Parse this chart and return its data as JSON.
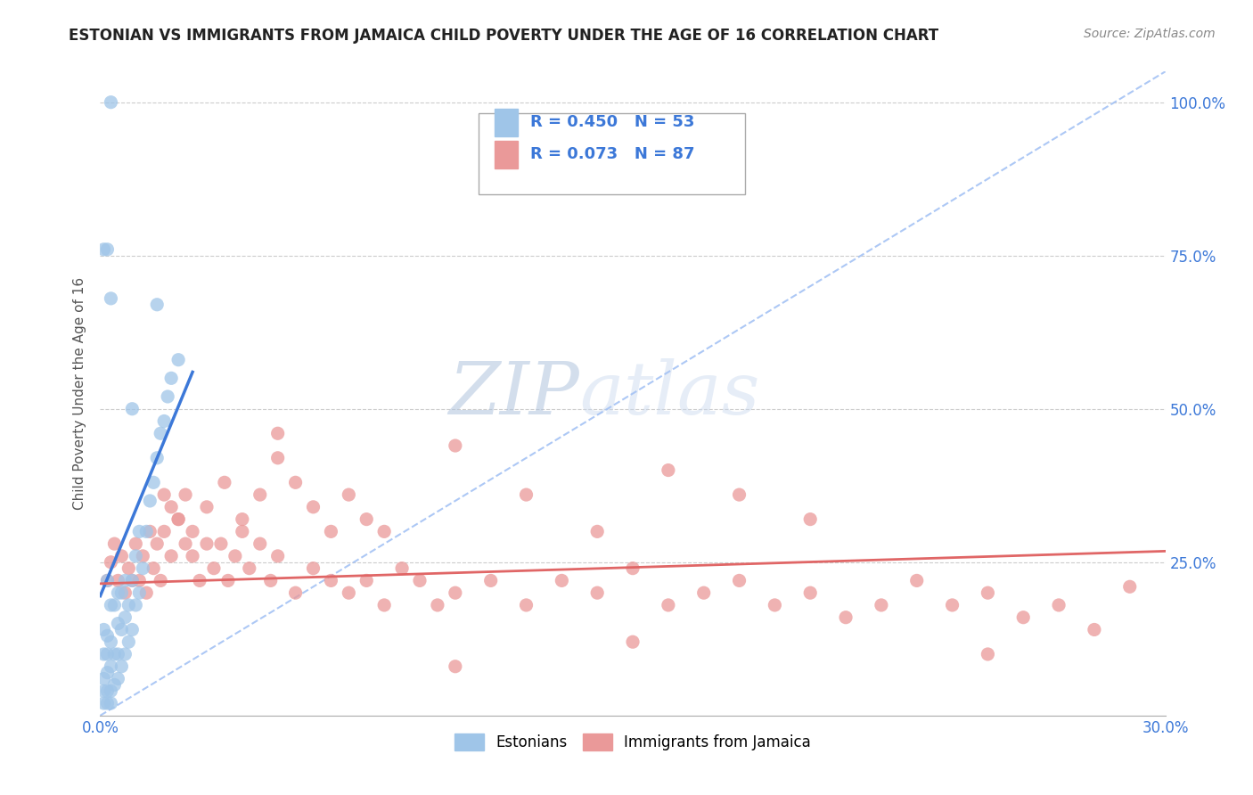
{
  "title": "ESTONIAN VS IMMIGRANTS FROM JAMAICA CHILD POVERTY UNDER THE AGE OF 16 CORRELATION CHART",
  "source": "Source: ZipAtlas.com",
  "ylabel": "Child Poverty Under the Age of 16",
  "xmin": 0.0,
  "xmax": 0.3,
  "ymin": 0.0,
  "ymax": 1.05,
  "yticks": [
    0.0,
    0.25,
    0.5,
    0.75,
    1.0
  ],
  "ytick_labels": [
    "",
    "25.0%",
    "50.0%",
    "75.0%",
    "100.0%"
  ],
  "xtick_left_label": "0.0%",
  "xtick_right_label": "30.0%",
  "legend_r1": "R = 0.450",
  "legend_n1": "N = 53",
  "legend_r2": "R = 0.073",
  "legend_n2": "N = 87",
  "color_estonian": "#9fc5e8",
  "color_jamaica": "#ea9999",
  "color_estonian_line": "#3c78d8",
  "color_jamaica_line": "#e06666",
  "color_diagonal": "#a4c2f4",
  "color_grid": "#cccccc",
  "color_tick_label": "#3c78d8",
  "watermark_zip": "ZIP",
  "watermark_atlas": "atlas",
  "watermark_color_zip": "#c9d9ef",
  "watermark_color_atlas": "#c9d9ef",
  "est_line_x0": 0.0,
  "est_line_y0": 0.195,
  "est_line_x1": 0.026,
  "est_line_y1": 0.56,
  "jam_line_x0": 0.0,
  "jam_line_y0": 0.215,
  "jam_line_x1": 0.3,
  "jam_line_y1": 0.268,
  "estonian_x": [
    0.001,
    0.001,
    0.001,
    0.001,
    0.001,
    0.002,
    0.002,
    0.002,
    0.002,
    0.002,
    0.002,
    0.003,
    0.003,
    0.003,
    0.003,
    0.003,
    0.004,
    0.004,
    0.004,
    0.005,
    0.005,
    0.005,
    0.005,
    0.006,
    0.006,
    0.006,
    0.007,
    0.007,
    0.007,
    0.008,
    0.008,
    0.009,
    0.009,
    0.01,
    0.01,
    0.011,
    0.011,
    0.012,
    0.013,
    0.014,
    0.015,
    0.016,
    0.017,
    0.018,
    0.019,
    0.02,
    0.022,
    0.001,
    0.002,
    0.003,
    0.003,
    0.009,
    0.016
  ],
  "estonian_y": [
    0.02,
    0.04,
    0.06,
    0.1,
    0.14,
    0.02,
    0.04,
    0.07,
    0.1,
    0.13,
    0.22,
    0.02,
    0.04,
    0.08,
    0.12,
    0.18,
    0.05,
    0.1,
    0.18,
    0.06,
    0.1,
    0.15,
    0.2,
    0.08,
    0.14,
    0.2,
    0.1,
    0.16,
    0.22,
    0.12,
    0.18,
    0.14,
    0.22,
    0.18,
    0.26,
    0.2,
    0.3,
    0.24,
    0.3,
    0.35,
    0.38,
    0.42,
    0.46,
    0.48,
    0.52,
    0.55,
    0.58,
    0.76,
    0.76,
    0.68,
    1.0,
    0.5,
    0.67
  ],
  "jamaica_x": [
    0.002,
    0.003,
    0.004,
    0.005,
    0.006,
    0.007,
    0.008,
    0.009,
    0.01,
    0.011,
    0.012,
    0.013,
    0.014,
    0.015,
    0.016,
    0.017,
    0.018,
    0.02,
    0.022,
    0.024,
    0.026,
    0.028,
    0.03,
    0.032,
    0.034,
    0.036,
    0.038,
    0.04,
    0.042,
    0.045,
    0.048,
    0.05,
    0.055,
    0.06,
    0.065,
    0.07,
    0.075,
    0.08,
    0.085,
    0.09,
    0.095,
    0.1,
    0.11,
    0.12,
    0.13,
    0.14,
    0.15,
    0.16,
    0.17,
    0.18,
    0.19,
    0.2,
    0.21,
    0.22,
    0.23,
    0.24,
    0.25,
    0.26,
    0.27,
    0.28,
    0.29,
    0.018,
    0.02,
    0.022,
    0.024,
    0.026,
    0.03,
    0.035,
    0.04,
    0.045,
    0.05,
    0.055,
    0.06,
    0.065,
    0.07,
    0.075,
    0.08,
    0.1,
    0.12,
    0.14,
    0.16,
    0.18,
    0.2,
    0.1,
    0.15,
    0.25,
    0.05
  ],
  "jamaica_y": [
    0.22,
    0.25,
    0.28,
    0.22,
    0.26,
    0.2,
    0.24,
    0.22,
    0.28,
    0.22,
    0.26,
    0.2,
    0.3,
    0.24,
    0.28,
    0.22,
    0.3,
    0.26,
    0.32,
    0.28,
    0.26,
    0.22,
    0.28,
    0.24,
    0.28,
    0.22,
    0.26,
    0.3,
    0.24,
    0.28,
    0.22,
    0.26,
    0.2,
    0.24,
    0.22,
    0.2,
    0.22,
    0.18,
    0.24,
    0.22,
    0.18,
    0.2,
    0.22,
    0.18,
    0.22,
    0.2,
    0.24,
    0.18,
    0.2,
    0.22,
    0.18,
    0.2,
    0.16,
    0.18,
    0.22,
    0.18,
    0.2,
    0.16,
    0.18,
    0.14,
    0.21,
    0.36,
    0.34,
    0.32,
    0.36,
    0.3,
    0.34,
    0.38,
    0.32,
    0.36,
    0.42,
    0.38,
    0.34,
    0.3,
    0.36,
    0.32,
    0.3,
    0.44,
    0.36,
    0.3,
    0.4,
    0.36,
    0.32,
    0.08,
    0.12,
    0.1,
    0.46
  ]
}
